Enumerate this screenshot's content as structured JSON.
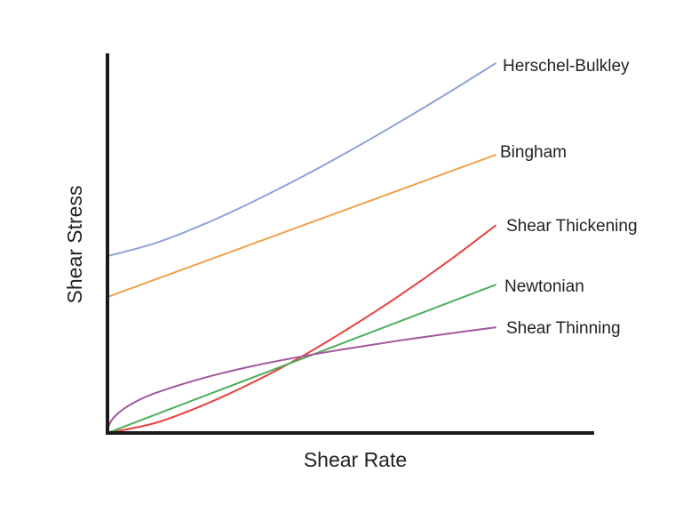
{
  "chart_data": {
    "type": "line",
    "title": "",
    "xlabel": "Shear Rate",
    "ylabel": "Shear Stress",
    "xlim": [
      0,
      1
    ],
    "ylim": [
      0,
      1
    ],
    "grid": false,
    "legend": "inline labels at line ends (right)",
    "series": [
      {
        "name": "Herschel-Bulkley",
        "color": "#8fa3d6",
        "x": [
          0,
          0.1,
          0.2,
          0.3,
          0.4,
          0.5,
          0.6,
          0.7,
          0.8
        ],
        "y": [
          0.467,
          0.502,
          0.552,
          0.611,
          0.676,
          0.746,
          0.82,
          0.897,
          0.977
        ]
      },
      {
        "name": "Bingham",
        "color": "#f0a04b",
        "x": [
          0,
          0.8
        ],
        "y": [
          0.359,
          0.735
        ]
      },
      {
        "name": "Shear Thickening",
        "color": "#e8413c",
        "x": [
          0,
          0.1,
          0.2,
          0.3,
          0.4,
          0.5,
          0.6,
          0.7,
          0.8
        ],
        "y": [
          0,
          0.027,
          0.075,
          0.134,
          0.202,
          0.279,
          0.362,
          0.452,
          0.549
        ]
      },
      {
        "name": "Newtonian",
        "color": "#4cae5a",
        "x": [
          0,
          0.8
        ],
        "y": [
          0,
          0.392
        ]
      },
      {
        "name": "Shear Thinning",
        "color": "#a0579a",
        "x": [
          0,
          0.005,
          0.02,
          0.05,
          0.1,
          0.2,
          0.3,
          0.4,
          0.5,
          0.6,
          0.7,
          0.8
        ],
        "y": [
          0,
          0.026,
          0.05,
          0.077,
          0.106,
          0.146,
          0.177,
          0.202,
          0.224,
          0.244,
          0.262,
          0.279
        ]
      }
    ]
  }
}
